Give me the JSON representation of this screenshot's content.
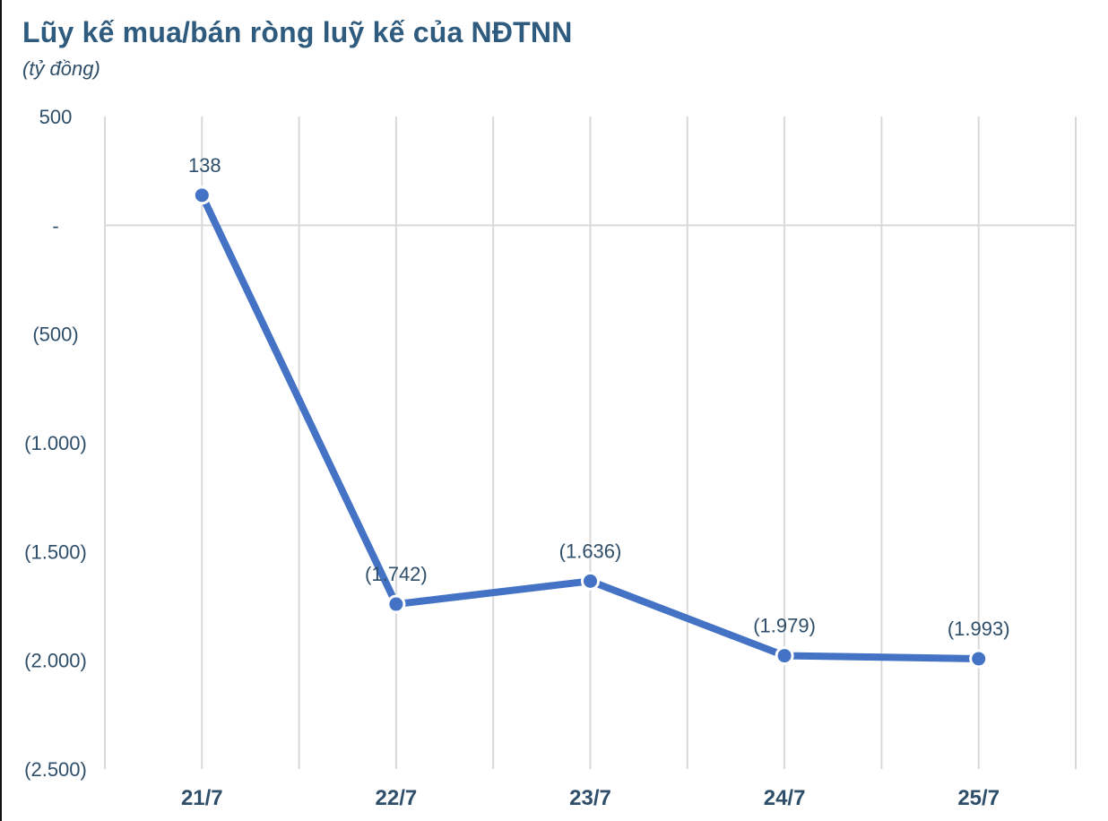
{
  "header": {
    "title": "Lũy kế mua/bán ròng luỹ kế của NĐTNN",
    "subtitle": "(tỷ đồng)"
  },
  "colors": {
    "line": "#4472c4",
    "text": "#2e4e6a",
    "title": "#2e5b7e",
    "grid": "#d9d9d9"
  },
  "chart_data": {
    "type": "line",
    "title": "Lũy kế mua/bán ròng luỹ kế của NĐTNN",
    "subtitle": "(tỷ đồng)",
    "xlabel": "",
    "ylabel": "tỷ đồng",
    "categories": [
      "21/7",
      "22/7",
      "23/7",
      "24/7",
      "25/7"
    ],
    "series": [
      {
        "name": "Lũy kế mua/bán ròng",
        "values": [
          138,
          -1742,
          -1636,
          -1979,
          -1993
        ]
      }
    ],
    "data_labels": [
      "138",
      "(1.742)",
      "(1.636)",
      "(1.979)",
      "(1.993)"
    ],
    "ylim": [
      -2500,
      500
    ],
    "yticks": [
      500,
      0,
      -500,
      -1000,
      -1500,
      -2000,
      -2500
    ],
    "ytick_labels": [
      "500",
      "-",
      "(500)",
      "(1.000)",
      "(1.500)",
      "(2.000)",
      "(2.500)"
    ],
    "grid": {
      "vertical": true,
      "horizontal_zero_line": true
    },
    "legend": "none"
  }
}
